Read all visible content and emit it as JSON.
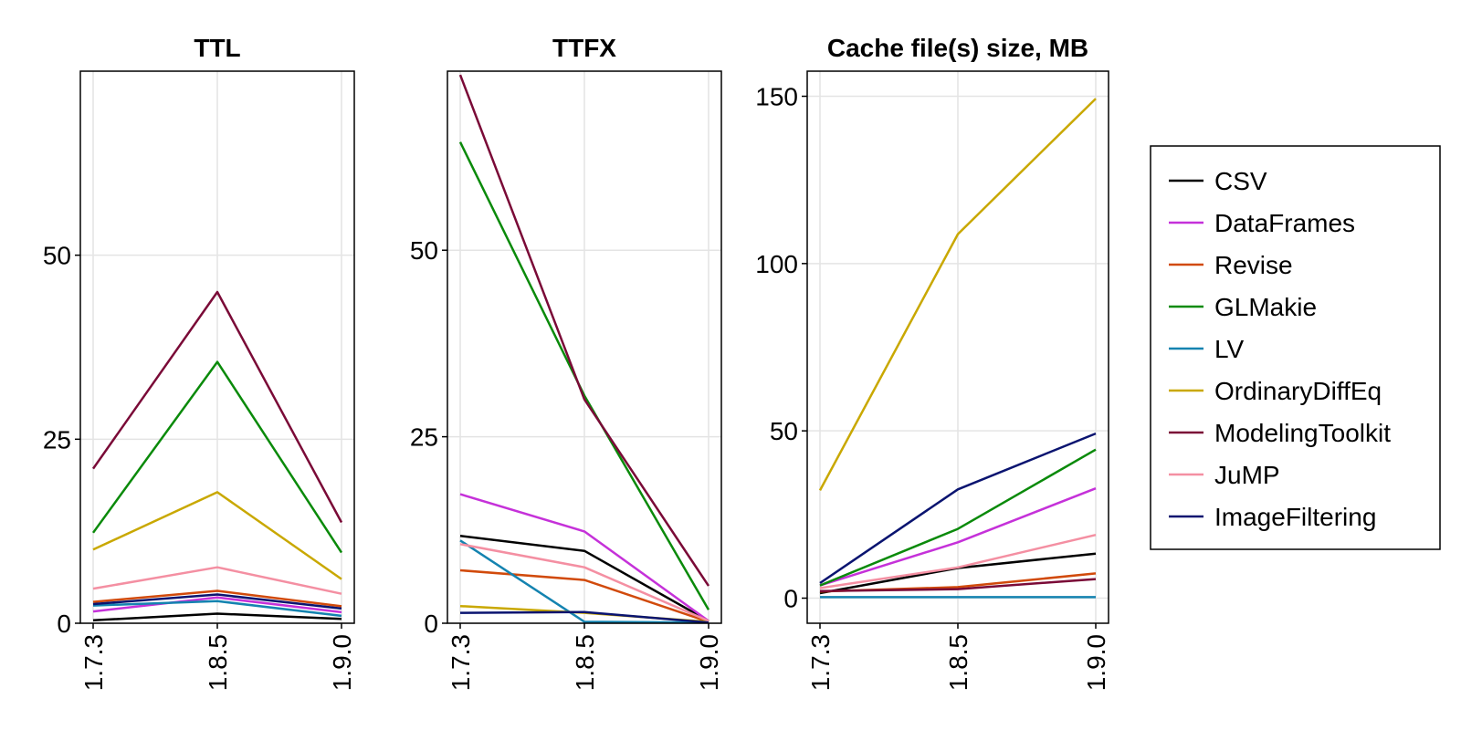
{
  "chart_data": [
    {
      "type": "line",
      "title": "TTL",
      "xlabel": "",
      "ylabel": "",
      "categories": [
        "1.7.3",
        "1.8.5",
        "1.9.0"
      ],
      "ylim": [
        0,
        75
      ],
      "yticks": [
        0,
        25,
        50
      ],
      "series": [
        {
          "name": "CSV",
          "values": [
            0.4,
            1.3,
            0.6
          ]
        },
        {
          "name": "DataFrames",
          "values": [
            1.6,
            3.5,
            1.5
          ]
        },
        {
          "name": "Revise",
          "values": [
            2.9,
            4.4,
            2.3
          ]
        },
        {
          "name": "GLMakie",
          "values": [
            12.3,
            35.5,
            9.6
          ]
        },
        {
          "name": "LV",
          "values": [
            2.4,
            3.0,
            1.0
          ]
        },
        {
          "name": "OrdinaryDiffEq",
          "values": [
            10.0,
            17.8,
            6.0
          ]
        },
        {
          "name": "ModelingToolkit",
          "values": [
            21.0,
            45.0,
            13.7
          ]
        },
        {
          "name": "JuMP",
          "values": [
            4.7,
            7.6,
            4.0
          ]
        },
        {
          "name": "ImageFiltering",
          "values": [
            2.6,
            3.9,
            2.0
          ]
        }
      ]
    },
    {
      "type": "line",
      "title": "TTFX",
      "xlabel": "",
      "ylabel": "",
      "categories": [
        "1.7.3",
        "1.8.5",
        "1.9.0"
      ],
      "ylim": [
        0,
        74
      ],
      "yticks": [
        0,
        25,
        50
      ],
      "series": [
        {
          "name": "CSV",
          "values": [
            11.7,
            9.7,
            0.3
          ]
        },
        {
          "name": "DataFrames",
          "values": [
            17.3,
            12.3,
            0.3
          ]
        },
        {
          "name": "Revise",
          "values": [
            7.1,
            5.8,
            0.2
          ]
        },
        {
          "name": "GLMakie",
          "values": [
            64.5,
            30.5,
            1.8
          ]
        },
        {
          "name": "LV",
          "values": [
            11.1,
            0.2,
            0.1
          ]
        },
        {
          "name": "OrdinaryDiffEq",
          "values": [
            2.3,
            1.4,
            0.2
          ]
        },
        {
          "name": "ModelingToolkit",
          "values": [
            73.5,
            30.0,
            5.0
          ]
        },
        {
          "name": "JuMP",
          "values": [
            10.6,
            7.5,
            0.3
          ]
        },
        {
          "name": "ImageFiltering",
          "values": [
            1.4,
            1.5,
            0.1
          ]
        }
      ]
    },
    {
      "type": "line",
      "title": "Cache file(s) size, MB",
      "xlabel": "",
      "ylabel": "",
      "categories": [
        "1.7.3",
        "1.8.5",
        "1.9.0"
      ],
      "ylim": [
        -7.5,
        157.5
      ],
      "yticks": [
        0,
        50,
        100,
        150
      ],
      "series": [
        {
          "name": "CSV",
          "values": [
            1.5,
            9.0,
            13.3
          ]
        },
        {
          "name": "DataFrames",
          "values": [
            3.8,
            16.7,
            32.8
          ]
        },
        {
          "name": "Revise",
          "values": [
            2.0,
            3.3,
            7.4
          ]
        },
        {
          "name": "GLMakie",
          "values": [
            3.8,
            20.7,
            44.4
          ]
        },
        {
          "name": "LV",
          "values": [
            0.3,
            0.3,
            0.3
          ]
        },
        {
          "name": "OrdinaryDiffEq",
          "values": [
            32.2,
            108.8,
            149.3
          ]
        },
        {
          "name": "ModelingToolkit",
          "values": [
            2.1,
            2.7,
            5.7
          ]
        },
        {
          "name": "JuMP",
          "values": [
            3.0,
            9.2,
            18.9
          ]
        },
        {
          "name": "ImageFiltering",
          "values": [
            4.5,
            32.5,
            49.2
          ]
        }
      ]
    }
  ],
  "legend": {
    "placement": "right",
    "entries": [
      {
        "name": "CSV",
        "color": "#000000"
      },
      {
        "name": "DataFrames",
        "color": "#c531d9"
      },
      {
        "name": "Revise",
        "color": "#d14a0b"
      },
      {
        "name": "GLMakie",
        "color": "#0a8a0a"
      },
      {
        "name": "LV",
        "color": "#1483b0"
      },
      {
        "name": "OrdinaryDiffEq",
        "color": "#c9a800"
      },
      {
        "name": "ModelingToolkit",
        "color": "#7a0a37"
      },
      {
        "name": "JuMP",
        "color": "#f48fa2"
      },
      {
        "name": "ImageFiltering",
        "color": "#0a1470"
      }
    ]
  }
}
